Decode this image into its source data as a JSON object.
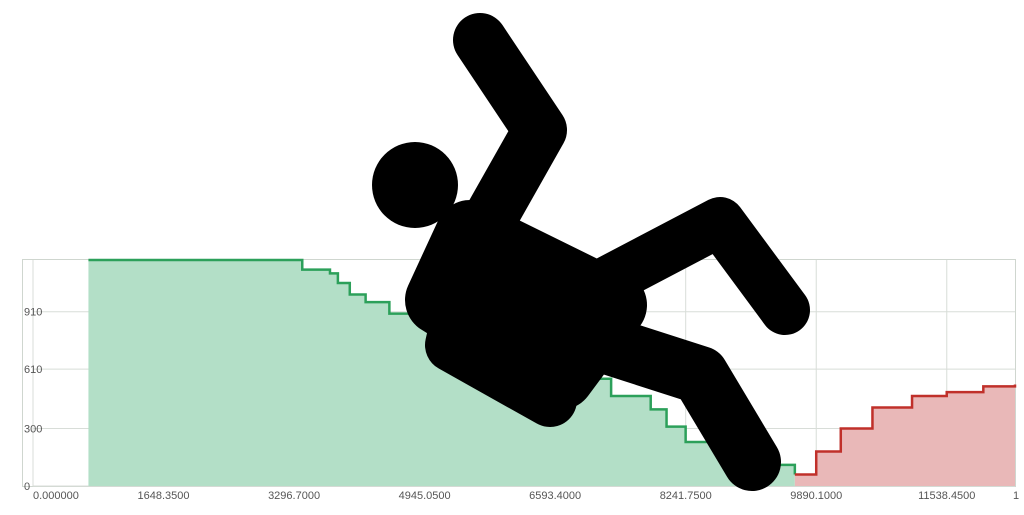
{
  "chart_data": {
    "type": "area",
    "title": "",
    "xlabel": "",
    "ylabel": "",
    "xlim": [
      0,
      12400
    ],
    "ylim": [
      0,
      1180
    ],
    "x_ticks": [
      "0.000000",
      "1648.3500",
      "3296.7000",
      "4945.0500",
      "6593.4000",
      "8241.7500",
      "9890.1000",
      "11538.4500",
      "1"
    ],
    "y_ticks": [
      "0",
      "300",
      "610",
      "910"
    ],
    "grid": true,
    "series": [
      {
        "color": "#2ca05a",
        "fill": "#b3dfc7",
        "points": [
          [
            700,
            1180
          ],
          [
            3296.7,
            1180
          ],
          [
            3400,
            1130
          ],
          [
            3750,
            1110
          ],
          [
            3850,
            1060
          ],
          [
            4000,
            1000
          ],
          [
            4200,
            960
          ],
          [
            4500,
            900
          ],
          [
            4945,
            860
          ],
          [
            5300,
            790
          ],
          [
            5700,
            740
          ],
          [
            6100,
            690
          ],
          [
            6593,
            630
          ],
          [
            6900,
            560
          ],
          [
            7300,
            470
          ],
          [
            7800,
            400
          ],
          [
            8000,
            310
          ],
          [
            8241,
            230
          ],
          [
            8700,
            170
          ],
          [
            9200,
            110
          ],
          [
            9620,
            60
          ]
        ]
      },
      {
        "color": "#c0302a",
        "fill": "#e9b8b8",
        "points": [
          [
            9620,
            60
          ],
          [
            9890,
            180
          ],
          [
            10200,
            300
          ],
          [
            10600,
            410
          ],
          [
            11100,
            470
          ],
          [
            11538,
            490
          ],
          [
            12000,
            520
          ],
          [
            12400,
            530
          ]
        ]
      }
    ]
  },
  "icon": "falling-person-icon"
}
